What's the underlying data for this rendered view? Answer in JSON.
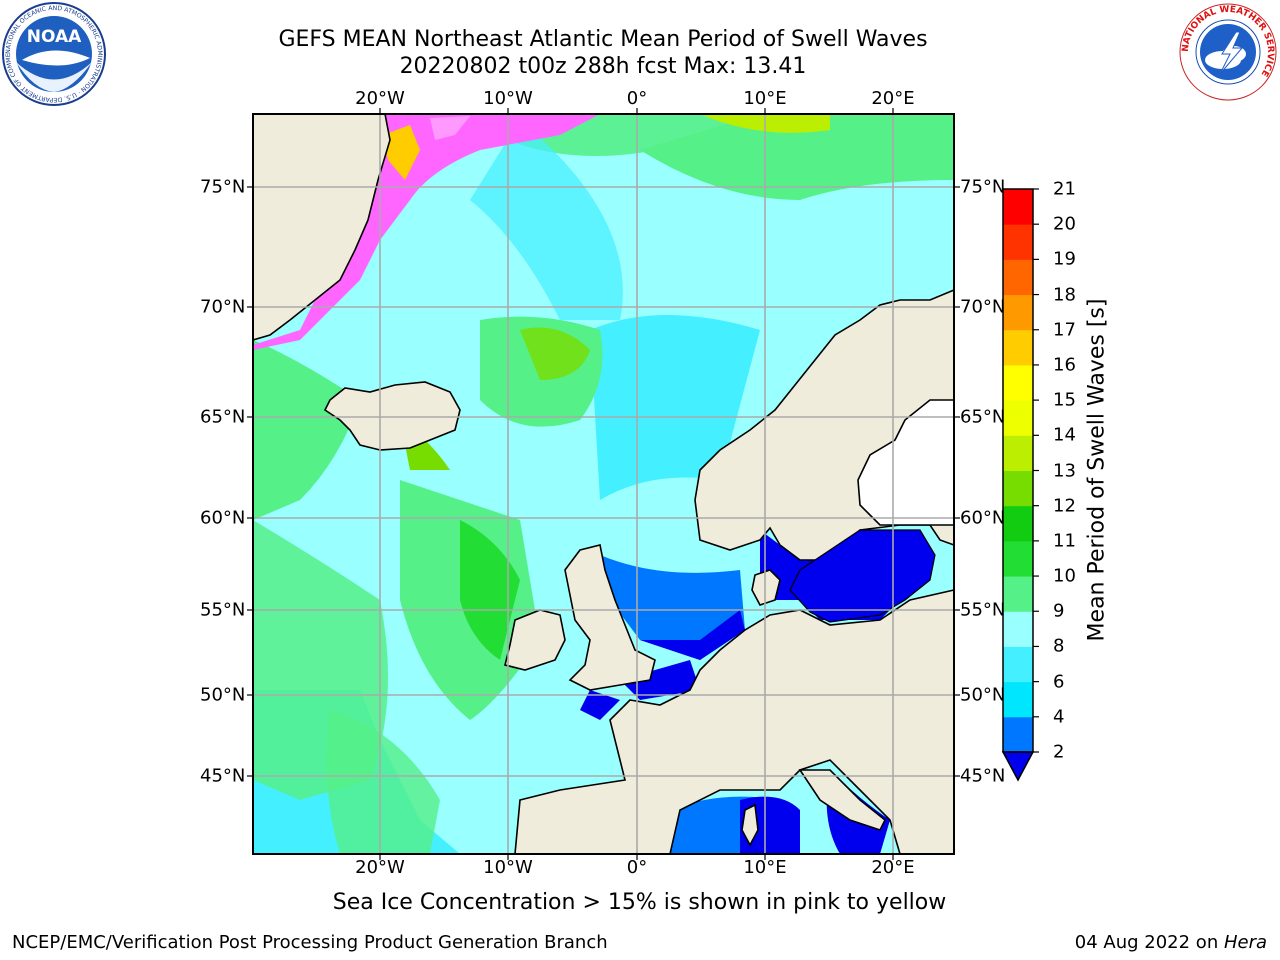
{
  "title_line1": "GEFS MEAN Northeast Atlantic Mean Period of Swell Waves",
  "title_line2": "20220802 t00z 288h fcst   Max: 13.41",
  "map": {
    "lon_labels": [
      "20°W",
      "10°W",
      "0°",
      "10°E",
      "20°E"
    ],
    "lat_labels": [
      "75°N",
      "70°N",
      "65°N",
      "60°N",
      "55°N",
      "50°N",
      "45°N"
    ],
    "colors": {
      "land": "#efecdc",
      "ice_pink": "#ff66ff",
      "ice_yellow": "#ffff44",
      "grid": "#aaaaaa"
    }
  },
  "colorbar": {
    "label": "Mean Period of Swell Waves [s]",
    "ticks": [
      "2",
      "4",
      "6",
      "8",
      "9",
      "10",
      "11",
      "12",
      "13",
      "14",
      "15",
      "16",
      "17",
      "18",
      "19",
      "20",
      "21"
    ],
    "colors": [
      "#0000ee",
      "#0077ff",
      "#00e6ff",
      "#44f0ff",
      "#99ffff",
      "#55f088",
      "#22dd33",
      "#11cc11",
      "#77dd00",
      "#bbee00",
      "#eeff00",
      "#ffff00",
      "#ffcc00",
      "#ff9900",
      "#ff6600",
      "#ff3300",
      "#ff0000"
    ]
  },
  "caption": "Sea Ice Concentration > 15% is shown in pink to yellow",
  "footer_left": "NCEP/EMC/Verification Post Processing Product Generation Branch",
  "footer_right_date": "04 Aug 2022 on ",
  "footer_right_machine": "Hera",
  "logos": {
    "noaa_text": "NOAA",
    "noaa_ring": "NATIONAL OCEANIC AND ATMOSPHERIC ADMINISTRATION · U.S. DEPARTMENT OF COMMERCE",
    "nws_ring": "NATIONAL WEATHER SERVICE"
  }
}
